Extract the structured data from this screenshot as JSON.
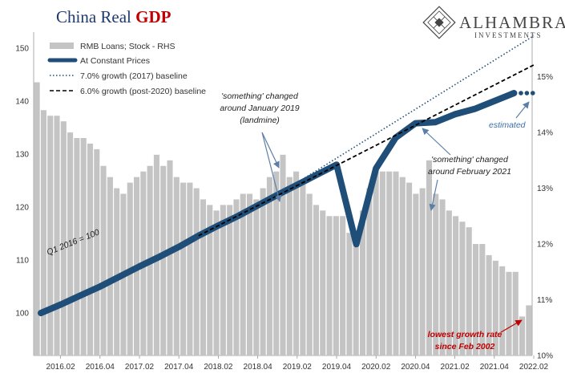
{
  "title": {
    "part1": "China Real ",
    "part2": "GDP"
  },
  "logo": {
    "name": "ALHAMBRA",
    "sub": "INVESTMENTS"
  },
  "chart_data": {
    "type": "bar+line",
    "x_tick_labels": [
      "2016.02",
      "2016.04",
      "2017.02",
      "2017.04",
      "2018.02",
      "2018.04",
      "2019.02",
      "2019.04",
      "2020.02",
      "2020.04",
      "2021.02",
      "2021.04",
      "2022.02"
    ],
    "y_left": {
      "ticks": [
        100,
        110,
        120,
        130,
        140,
        150
      ],
      "range": [
        92,
        153
      ]
    },
    "y_right": {
      "ticks": [
        "10%",
        "11%",
        "12%",
        "13%",
        "14%",
        "15%"
      ],
      "tick_values": [
        10,
        11,
        12,
        13,
        14,
        15
      ],
      "range": [
        10,
        15.8
      ]
    },
    "series": [
      {
        "name": "RMB Loans; Stock - RHS",
        "kind": "bar",
        "axis": "right",
        "color": "#c4c4c4",
        "values": [
          14.9,
          14.4,
          14.3,
          14.3,
          14.2,
          14.0,
          13.9,
          13.9,
          13.8,
          13.7,
          13.4,
          13.2,
          13.0,
          12.9,
          13.1,
          13.2,
          13.3,
          13.4,
          13.6,
          13.4,
          13.5,
          13.2,
          13.1,
          13.1,
          13.0,
          12.8,
          12.7,
          12.6,
          12.7,
          12.7,
          12.8,
          12.9,
          12.9,
          12.8,
          13.0,
          13.2,
          13.3,
          13.6,
          13.2,
          13.3,
          13.1,
          12.9,
          12.7,
          12.6,
          12.5,
          12.5,
          12.5,
          12.2,
          12.1,
          12.6,
          13.0,
          13.3,
          13.3,
          13.3,
          13.3,
          13.2,
          13.1,
          12.9,
          13.0,
          13.5,
          12.9,
          12.8,
          12.6,
          12.5,
          12.4,
          12.3,
          12.0,
          12.0,
          11.8,
          11.7,
          11.6,
          11.5,
          11.5,
          10.7,
          10.9
        ]
      },
      {
        "name": "At Constant Prices",
        "kind": "line",
        "axis": "left",
        "color": "#1f4e79",
        "x": [
          0,
          1,
          2,
          3,
          4,
          5,
          6,
          7,
          8,
          9,
          10,
          11,
          12,
          13,
          14,
          15,
          16,
          17,
          18,
          19,
          20,
          21,
          22,
          23,
          24
        ],
        "values": [
          100,
          101.6,
          103.3,
          105.0,
          106.9,
          108.8,
          110.6,
          112.5,
          114.6,
          116.5,
          118.3,
          120.3,
          122.3,
          124.2,
          126.1,
          128.0,
          113.0,
          127.3,
          133.1,
          135.8,
          136.0,
          137.5,
          138.5,
          140.0,
          141.5
        ]
      },
      {
        "name": "7.0% growth (2017) baseline",
        "kind": "dotted-line",
        "axis": "left",
        "color": "#1f4e79",
        "x": [
          12,
          25
        ],
        "values": [
          122.3,
          152.3
        ]
      },
      {
        "name": "6.0% growth (post-2020) baseline",
        "kind": "dashed-line",
        "axis": "left",
        "color": "#000000",
        "x": [
          8,
          25
        ],
        "values": [
          114.6,
          146.8
        ]
      },
      {
        "name": "estimated",
        "kind": "dotted-extension",
        "axis": "left",
        "color": "#1f4e79",
        "x": [
          24,
          25
        ],
        "values": [
          141.5,
          141.5
        ]
      }
    ],
    "annotations": {
      "q1": "Q1 2016 = 100",
      "landmine": [
        "'something' changed",
        "around January 2019",
        "(landmine)"
      ],
      "feb2021": [
        "'something' changed",
        "around February 2021"
      ],
      "estimated": "estimated",
      "lowest": [
        "lowest growth rate",
        "since Feb 2002"
      ]
    }
  }
}
